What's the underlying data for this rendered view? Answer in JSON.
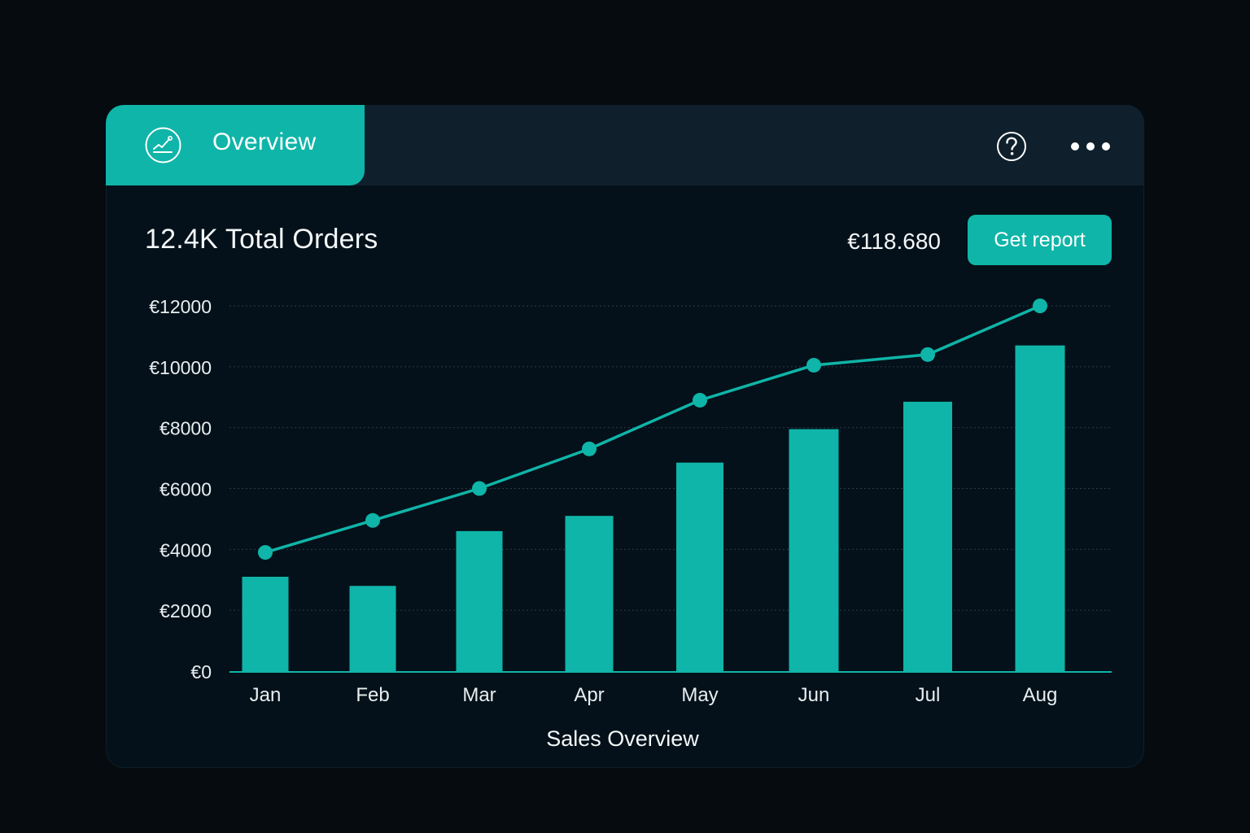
{
  "header": {
    "tab_label": "Overview",
    "tab_icon": "trend-chart-icon",
    "help_icon": "help-icon",
    "more_icon": "more-options-icon"
  },
  "summary": {
    "title": "12.4K Total Orders",
    "total_value": "€118.680",
    "report_button_label": "Get report"
  },
  "colors": {
    "accent": "#0fb5a8",
    "background": "#04111a",
    "header": "#0f202c"
  },
  "chart_data": {
    "type": "bar",
    "title": "",
    "xlabel": "Sales Overview",
    "ylabel": "",
    "categories": [
      "Jan",
      "Feb",
      "Mar",
      "Apr",
      "May",
      "Jun",
      "Jul",
      "Aug"
    ],
    "y_ticks": [
      "€0",
      "€2000",
      "€4000",
      "€6000",
      "€8000",
      "€10000",
      "€12000"
    ],
    "ylim": [
      0,
      12000
    ],
    "grid": true,
    "series": [
      {
        "type": "bar",
        "values": [
          3100,
          2800,
          4600,
          5100,
          6850,
          7950,
          8850,
          10700
        ]
      },
      {
        "type": "line",
        "values": [
          3900,
          4950,
          6000,
          7300,
          8900,
          10050,
          10400,
          12000
        ]
      }
    ]
  }
}
